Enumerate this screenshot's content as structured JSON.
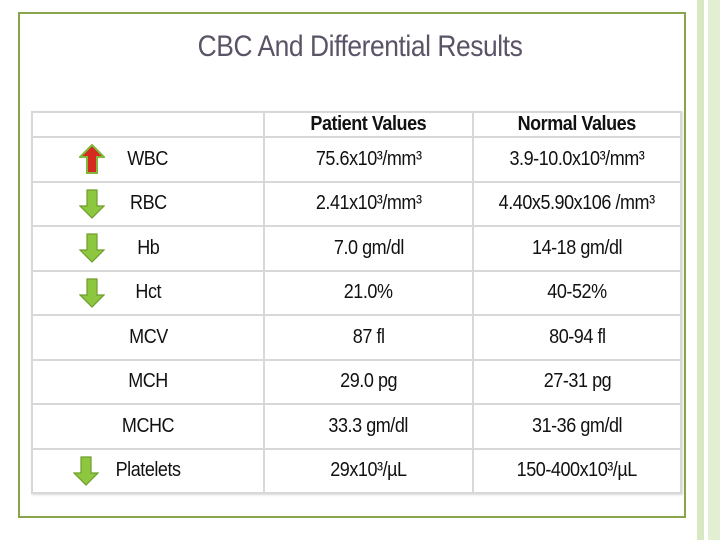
{
  "title": "CBC And Differential Results",
  "table": {
    "headers": [
      "",
      "Patient Values",
      "Normal Values"
    ],
    "rows": [
      {
        "name": "WBC",
        "patient": "75.6x10³/mm³",
        "normal": "3.9-10.0x10³/mm³",
        "indicator": "up"
      },
      {
        "name": "RBC",
        "patient": "2.41x10³/mm³",
        "normal": "4.40x5.90x106 /mm³",
        "indicator": "down"
      },
      {
        "name": "Hb",
        "patient": "7.0 gm/dl",
        "normal": "14-18 gm/dl",
        "indicator": "down"
      },
      {
        "name": "Hct",
        "patient": "21.0%",
        "normal": "40-52%",
        "indicator": "down"
      },
      {
        "name": "MCV",
        "patient": "87 fl",
        "normal": "80-94 fl",
        "indicator": "none"
      },
      {
        "name": "MCH",
        "patient": "29.0 pg",
        "normal": "27-31 pg",
        "indicator": "none"
      },
      {
        "name": "MCHC",
        "patient": "33.3 gm/dl",
        "normal": "31-36 gm/dl",
        "indicator": "none"
      },
      {
        "name": "Platelets",
        "patient": "29x10³/µL",
        "normal": "150-400x10³/µL",
        "indicator": "down"
      }
    ]
  },
  "colors": {
    "frame": "#8aa44a",
    "up_arrow": "#d42a1f",
    "down_arrow": "#8dc63f",
    "title": "#5b5366"
  }
}
